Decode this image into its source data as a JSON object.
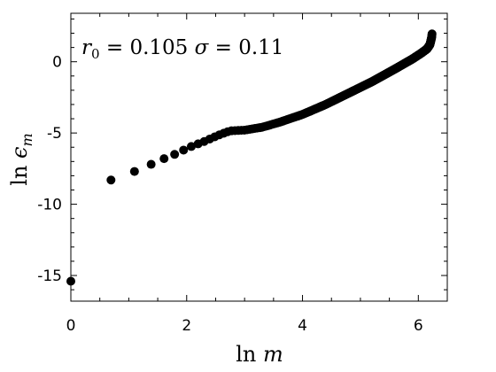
{
  "chart_data": {
    "type": "scatter",
    "title": "",
    "annotation": "r₀ = 0.105  σ = 0.11",
    "annotation_parts": {
      "r_symbol": "r",
      "r_subscript": "0",
      "r_eq": " = 0.105 ",
      "sigma_symbol": "σ",
      "sigma_eq": " = 0.11"
    },
    "xlabel": "ln m",
    "xlabel_parts": {
      "func": "ln ",
      "var": "m"
    },
    "ylabel": "ln ϵm",
    "ylabel_parts": {
      "func": "ln ",
      "var": "ϵ",
      "subscript": "m"
    },
    "xlim": [
      0,
      6.5
    ],
    "ylim": [
      -16.8,
      3.4
    ],
    "xticks": [
      {
        "value": 0,
        "label": "0"
      },
      {
        "value": 2,
        "label": "2"
      },
      {
        "value": 4,
        "label": "4"
      },
      {
        "value": 6,
        "label": "6"
      }
    ],
    "yticks": [
      {
        "value": 0,
        "label": "0"
      },
      {
        "value": -5,
        "label": "-5"
      },
      {
        "value": -10,
        "label": "-10"
      },
      {
        "value": -15,
        "label": "-15"
      }
    ],
    "grid": false,
    "legend": "none",
    "marker_color": "#000000",
    "curve_anchors": [
      [
        1.0986,
        -7.7
      ],
      [
        1.3863,
        -7.2
      ],
      [
        1.6094,
        -6.8
      ],
      [
        1.7918,
        -6.5
      ],
      [
        1.9459,
        -6.2
      ],
      [
        2.0794,
        -5.95
      ],
      [
        2.3,
        -5.6
      ],
      [
        2.55,
        -5.15
      ],
      [
        2.75,
        -4.85
      ],
      [
        3.0,
        -4.8
      ],
      [
        3.3,
        -4.6
      ],
      [
        3.6,
        -4.25
      ],
      [
        4.0,
        -3.7
      ],
      [
        4.4,
        -3.0
      ],
      [
        4.8,
        -2.2
      ],
      [
        5.2,
        -1.4
      ],
      [
        5.6,
        -0.5
      ],
      [
        5.9,
        0.2
      ],
      [
        6.05,
        0.6
      ],
      [
        6.15,
        0.9
      ],
      [
        6.2,
        1.2
      ],
      [
        6.23,
        1.7
      ],
      [
        6.24,
        2.1
      ]
    ],
    "n_points": 511,
    "special_points": [
      {
        "x": 0,
        "y": -15.4
      },
      {
        "x": 0.6931,
        "y": -8.3
      }
    ]
  }
}
